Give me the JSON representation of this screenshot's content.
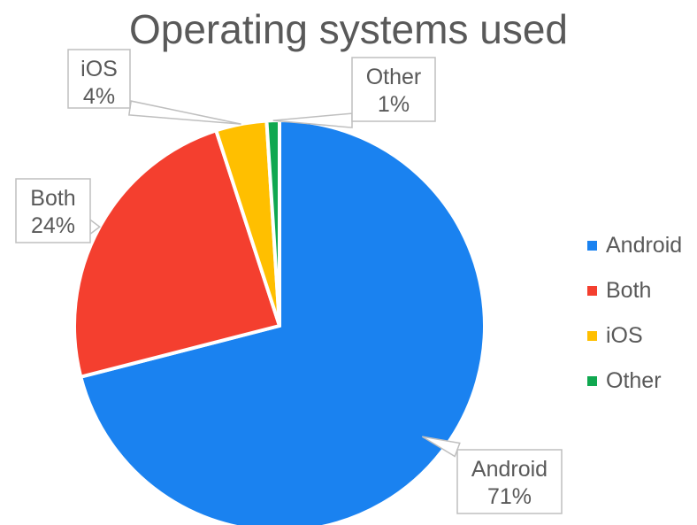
{
  "chart_data": {
    "type": "pie",
    "title": "Operating systems used",
    "slices": [
      {
        "label": "Android",
        "value": 71,
        "percent_label": "71%",
        "color": "#1a82f0"
      },
      {
        "label": "Both",
        "value": 24,
        "percent_label": "24%",
        "color": "#f43f2f"
      },
      {
        "label": "iOS",
        "value": 4,
        "percent_label": "4%",
        "color": "#ffbf00"
      },
      {
        "label": "Other",
        "value": 1,
        "percent_label": "1%",
        "color": "#10a850"
      }
    ],
    "legend": {
      "position": "right",
      "entries": [
        "Android",
        "Both",
        "iOS",
        "Other"
      ]
    },
    "data_labels": "callouts"
  }
}
